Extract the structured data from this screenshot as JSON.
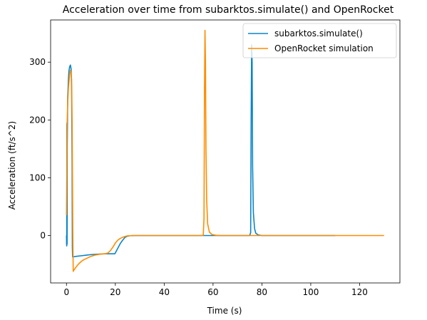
{
  "chart_data": {
    "type": "line",
    "title": "Acceleration over time from subarktos.simulate() and OpenRocket",
    "xlabel": "Time (s)",
    "ylabel": "Acceleration (ft/s^2)",
    "xlim": [
      -6.5,
      136.5
    ],
    "ylim": [
      -82,
      373
    ],
    "xticks": [
      0,
      20,
      40,
      60,
      80,
      100,
      120
    ],
    "yticks": [
      0,
      100,
      200,
      300
    ],
    "grid": false,
    "legend_position": "upper right",
    "series": [
      {
        "name": "subarktos.simulate()",
        "color": "#0a84c8",
        "points": [
          [
            0,
            0
          ],
          [
            0.05,
            -15
          ],
          [
            0.1,
            -18
          ],
          [
            0.15,
            190
          ],
          [
            0.2,
            195
          ],
          [
            0.25,
            -15
          ],
          [
            0.3,
            150
          ],
          [
            0.5,
            240
          ],
          [
            0.8,
            270
          ],
          [
            1.0,
            285
          ],
          [
            1.3,
            292
          ],
          [
            1.6,
            295
          ],
          [
            1.9,
            288
          ],
          [
            2.1,
            250
          ],
          [
            2.3,
            120
          ],
          [
            2.4,
            -20
          ],
          [
            2.5,
            -37
          ],
          [
            4,
            -36
          ],
          [
            6,
            -35
          ],
          [
            8,
            -34
          ],
          [
            10,
            -33
          ],
          [
            12,
            -32.5
          ],
          [
            14,
            -32
          ],
          [
            16,
            -31.5
          ],
          [
            18,
            -31.5
          ],
          [
            19.8,
            -31.5
          ],
          [
            20,
            -30
          ],
          [
            21,
            -22
          ],
          [
            22,
            -14
          ],
          [
            23,
            -8
          ],
          [
            24,
            -3
          ],
          [
            25,
            -1
          ],
          [
            26,
            -0.3
          ],
          [
            28,
            0
          ],
          [
            30,
            0
          ],
          [
            40,
            0
          ],
          [
            50,
            0
          ],
          [
            60,
            0
          ],
          [
            70,
            0
          ],
          [
            75,
            0
          ],
          [
            75.4,
            5
          ],
          [
            75.6,
            200
          ],
          [
            75.8,
            330
          ],
          [
            76.0,
            300
          ],
          [
            76.2,
            120
          ],
          [
            76.5,
            40
          ],
          [
            77,
            12
          ],
          [
            77.5,
            4
          ],
          [
            78.5,
            1
          ],
          [
            80,
            0
          ],
          [
            90,
            0
          ],
          [
            100,
            0
          ],
          [
            110,
            0
          ]
        ]
      },
      {
        "name": "OpenRocket simulation",
        "color": "#ff8c00",
        "points": [
          [
            0,
            35
          ],
          [
            0.15,
            100
          ],
          [
            0.3,
            200
          ],
          [
            0.5,
            230
          ],
          [
            0.8,
            255
          ],
          [
            1.0,
            265
          ],
          [
            1.3,
            278
          ],
          [
            1.6,
            286
          ],
          [
            1.9,
            280
          ],
          [
            2.1,
            270
          ],
          [
            2.3,
            200
          ],
          [
            2.45,
            100
          ],
          [
            2.6,
            0
          ],
          [
            2.75,
            -62
          ],
          [
            3,
            -60
          ],
          [
            4,
            -54
          ],
          [
            5,
            -49
          ],
          [
            6,
            -45
          ],
          [
            7,
            -42
          ],
          [
            8,
            -40
          ],
          [
            9,
            -38
          ],
          [
            10,
            -36
          ],
          [
            12,
            -33.5
          ],
          [
            14,
            -32
          ],
          [
            16,
            -31.5
          ],
          [
            17,
            -30
          ],
          [
            18,
            -26
          ],
          [
            19,
            -20
          ],
          [
            20,
            -13
          ],
          [
            21,
            -8
          ],
          [
            22,
            -5
          ],
          [
            23,
            -3
          ],
          [
            24,
            -1.5
          ],
          [
            25,
            -0.5
          ],
          [
            27,
            0
          ],
          [
            30,
            0
          ],
          [
            40,
            0
          ],
          [
            50,
            0
          ],
          [
            55,
            0
          ],
          [
            56,
            0.5
          ],
          [
            56.3,
            30
          ],
          [
            56.5,
            250
          ],
          [
            56.7,
            355
          ],
          [
            56.9,
            300
          ],
          [
            57.1,
            150
          ],
          [
            57.4,
            60
          ],
          [
            57.8,
            20
          ],
          [
            58.5,
            6
          ],
          [
            59.5,
            2
          ],
          [
            61,
            0.5
          ],
          [
            63,
            0
          ],
          [
            70,
            0
          ],
          [
            80,
            0
          ],
          [
            90,
            0
          ],
          [
            100,
            0
          ],
          [
            110,
            0
          ],
          [
            120,
            0
          ],
          [
            130,
            0
          ]
        ]
      }
    ]
  }
}
